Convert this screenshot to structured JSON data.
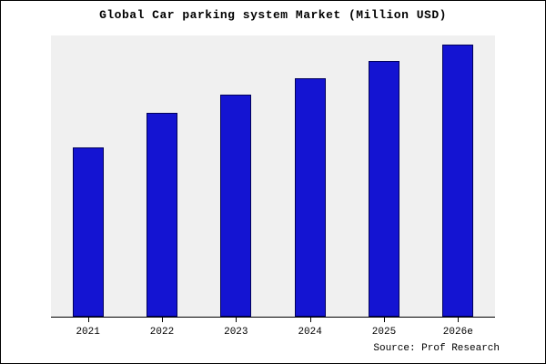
{
  "title": "Global Car parking system Market (Million USD)",
  "source_label": "Source: Prof Research",
  "chart_data": {
    "type": "bar",
    "title": "Global Car parking system Market (Million USD)",
    "categories": [
      "2021",
      "2022",
      "2023",
      "2024",
      "2025",
      "2026e"
    ],
    "values": [
      187,
      225,
      245,
      263,
      282,
      300
    ],
    "xlabel": "",
    "ylabel": "",
    "ylim": [
      0,
      310
    ],
    "grid": false,
    "legend": "none",
    "bar_color": "#1414d2",
    "bar_edge_color": "#00005a",
    "plot_background": "#f0f0f0",
    "figure_background": "#ffffff",
    "axis_color": "#000000"
  }
}
